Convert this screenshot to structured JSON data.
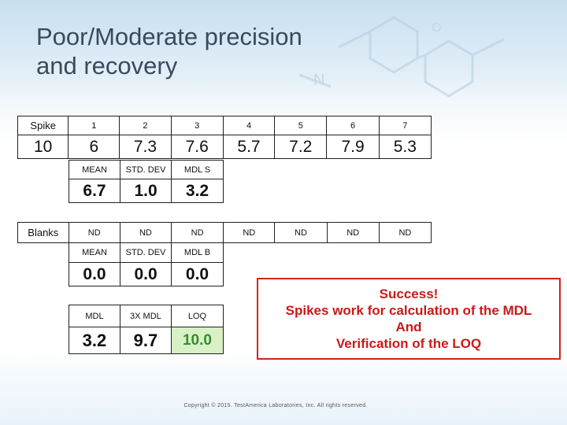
{
  "title": {
    "line1": "Poor/Moderate precision",
    "line2": "and recovery"
  },
  "spike": {
    "label": "Spike",
    "value_label": "10",
    "headers": [
      "1",
      "2",
      "3",
      "4",
      "5",
      "6",
      "7"
    ],
    "values": [
      "6",
      "7.3",
      "7.6",
      "5.7",
      "7.2",
      "7.9",
      "5.3"
    ],
    "stats_headers": [
      "MEAN",
      "STD. DEV",
      "MDL S"
    ],
    "stats_values": [
      "6.7",
      "1.0",
      "3.2"
    ]
  },
  "blanks": {
    "label": "Blanks",
    "values": [
      "ND",
      "ND",
      "ND",
      "ND",
      "ND",
      "ND",
      "ND"
    ],
    "stats_headers": [
      "MEAN",
      "STD. DEV",
      "MDL B"
    ],
    "stats_values": [
      "0.0",
      "0.0",
      "0.0"
    ]
  },
  "summary": {
    "headers": [
      "MDL",
      "3X MDL",
      "LOQ"
    ],
    "values": [
      "3.2",
      "9.7",
      "10.0"
    ]
  },
  "success": {
    "line1": "Success!",
    "line2": "Spikes work for calculation of the MDL",
    "line3": "And",
    "line4": "Verification of the LOQ"
  },
  "footer": {
    "copyright": "Copyright © 2015. TestAmerica Laboratories, Inc. All rights reserved."
  },
  "colors": {
    "title": "#3a4a5a",
    "success_red": "#cc1818",
    "loq_green": "#2f8f2f",
    "loq_bg": "#d8f0c4"
  }
}
